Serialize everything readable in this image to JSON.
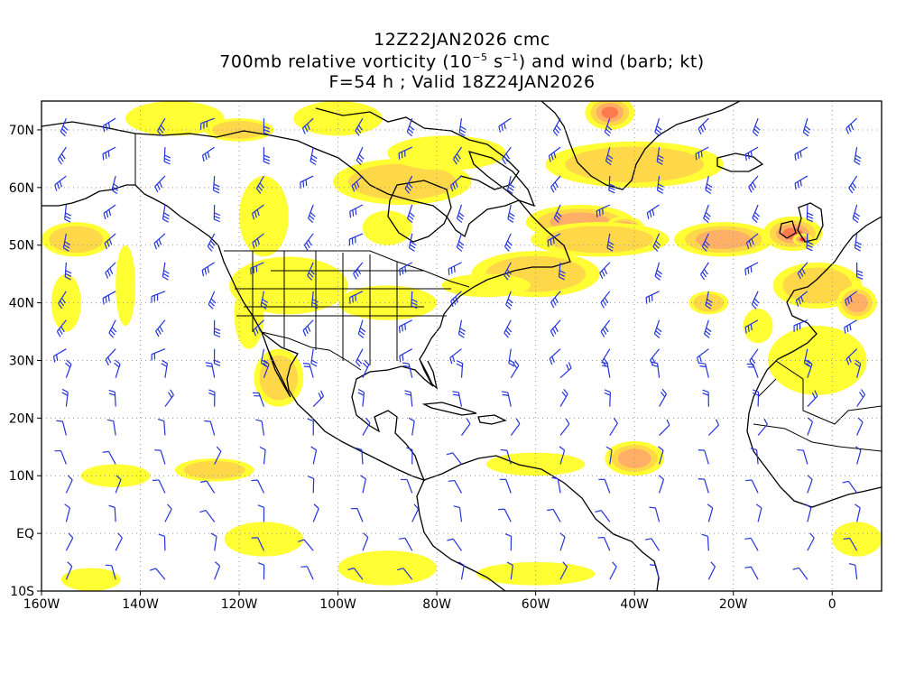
{
  "titles": {
    "line1": "12Z22JAN2026 cmc",
    "line2_pre": "700mb relative vorticity (10",
    "line2_exp1": "−5",
    "line2_mid": " s",
    "line2_exp2": "−1",
    "line2_post": ") and wind (barb; kt)",
    "line3": "F=54 h ; Valid 18Z24JAN2026"
  },
  "axes": {
    "lon_range": [
      -160,
      10
    ],
    "lat_range": [
      -10,
      75
    ],
    "y_ticks": [
      {
        "lat": 70,
        "label": "70N"
      },
      {
        "lat": 60,
        "label": "60N"
      },
      {
        "lat": 50,
        "label": "50N"
      },
      {
        "lat": 40,
        "label": "40N"
      },
      {
        "lat": 30,
        "label": "30N"
      },
      {
        "lat": 20,
        "label": "20N"
      },
      {
        "lat": 10,
        "label": "10N"
      },
      {
        "lat": 0,
        "label": "EQ"
      },
      {
        "lat": -10,
        "label": "10S"
      }
    ],
    "x_ticks": [
      {
        "lon": -160,
        "label": "160W"
      },
      {
        "lon": -140,
        "label": "140W"
      },
      {
        "lon": -120,
        "label": "120W"
      },
      {
        "lon": -100,
        "label": "100W"
      },
      {
        "lon": -80,
        "label": "80W"
      },
      {
        "lon": -60,
        "label": "60W"
      },
      {
        "lon": -40,
        "label": "40W"
      },
      {
        "lon": -20,
        "label": "20W"
      },
      {
        "lon": 0,
        "label": "0"
      }
    ],
    "gridlines": "dotted"
  },
  "colors": {
    "vort_levels": [
      "#ffff33",
      "#ffd84a",
      "#ffb066",
      "#ff7a4d",
      "#ff3333",
      "#ff3399"
    ],
    "barb": "#2233dd",
    "coast": "#000000"
  },
  "vorticity_areas": [
    {
      "lon": -51,
      "lat": 54,
      "rlon": 11,
      "rlat": 3,
      "level": 2
    },
    {
      "lon": -42,
      "lat": 53,
      "rlon": 4,
      "rlat": 2,
      "level": 5
    },
    {
      "lon": -47,
      "lat": 51,
      "rlon": 14,
      "rlat": 3,
      "level": 1
    },
    {
      "lon": -60,
      "lat": 45,
      "rlon": 13,
      "rlat": 4,
      "level": 1
    },
    {
      "lon": -70,
      "lat": 43,
      "rlon": 9,
      "rlat": 2,
      "level": 0
    },
    {
      "lon": -40,
      "lat": 64,
      "rlon": 18,
      "rlat": 4,
      "level": 1
    },
    {
      "lon": -45,
      "lat": 73,
      "rlon": 5,
      "rlat": 3,
      "level": 3
    },
    {
      "lon": -22,
      "lat": 51,
      "rlon": 10,
      "rlat": 3,
      "level": 2
    },
    {
      "lon": -8,
      "lat": 52,
      "rlon": 6,
      "rlat": 3,
      "level": 3
    },
    {
      "lon": -6,
      "lat": 51,
      "rlon": 2,
      "rlat": 1,
      "level": 4
    },
    {
      "lon": -3,
      "lat": 43,
      "rlon": 9,
      "rlat": 4,
      "level": 1
    },
    {
      "lon": 5,
      "lat": 40,
      "rlon": 4,
      "rlat": 3,
      "level": 2
    },
    {
      "lon": -3,
      "lat": 30,
      "rlon": 10,
      "rlat": 6,
      "level": 0
    },
    {
      "lon": -153,
      "lat": 51,
      "rlon": 7,
      "rlat": 3,
      "level": 1
    },
    {
      "lon": -155,
      "lat": 40,
      "rlon": 3,
      "rlat": 5,
      "level": 0
    },
    {
      "lon": -143,
      "lat": 43,
      "rlon": 2,
      "rlat": 7,
      "level": 0
    },
    {
      "lon": -133,
      "lat": 72,
      "rlon": 10,
      "rlat": 3,
      "level": 0
    },
    {
      "lon": -120,
      "lat": 70,
      "rlon": 7,
      "rlat": 2,
      "level": 1
    },
    {
      "lon": -100,
      "lat": 72,
      "rlon": 9,
      "rlat": 3,
      "level": 0
    },
    {
      "lon": -115,
      "lat": 55,
      "rlon": 5,
      "rlat": 7,
      "level": 0
    },
    {
      "lon": -87,
      "lat": 61,
      "rlon": 14,
      "rlat": 4,
      "level": 1
    },
    {
      "lon": -90,
      "lat": 53,
      "rlon": 5,
      "rlat": 3,
      "level": 0
    },
    {
      "lon": -78,
      "lat": 66,
      "rlon": 12,
      "rlat": 3,
      "level": 0
    },
    {
      "lon": -110,
      "lat": 43,
      "rlon": 12,
      "rlat": 5,
      "level": 0
    },
    {
      "lon": -112,
      "lat": 27,
      "rlon": 5,
      "rlat": 5,
      "level": 1
    },
    {
      "lon": -118,
      "lat": 38,
      "rlon": 3,
      "rlat": 6,
      "level": 0
    },
    {
      "lon": -90,
      "lat": 40,
      "rlon": 10,
      "rlat": 3,
      "level": 0
    },
    {
      "lon": -40,
      "lat": 13,
      "rlon": 6,
      "rlat": 3,
      "level": 2
    },
    {
      "lon": -60,
      "lat": 12,
      "rlon": 10,
      "rlat": 2,
      "level": 0
    },
    {
      "lon": -145,
      "lat": 10,
      "rlon": 7,
      "rlat": 2,
      "level": 0
    },
    {
      "lon": -125,
      "lat": 11,
      "rlon": 8,
      "rlat": 2,
      "level": 1
    },
    {
      "lon": -90,
      "lat": -6,
      "rlon": 10,
      "rlat": 3,
      "level": 0
    },
    {
      "lon": -115,
      "lat": -1,
      "rlon": 8,
      "rlat": 3,
      "level": 0
    },
    {
      "lon": -150,
      "lat": -8,
      "rlon": 6,
      "rlat": 2,
      "level": 0
    },
    {
      "lon": -60,
      "lat": -7,
      "rlon": 12,
      "rlat": 2,
      "level": 0
    },
    {
      "lon": -25,
      "lat": 40,
      "rlon": 4,
      "rlat": 2,
      "level": 1
    },
    {
      "lon": 5,
      "lat": -1,
      "rlon": 5,
      "rlat": 3,
      "level": 0
    },
    {
      "lon": -15,
      "lat": 36,
      "rlon": 3,
      "rlat": 3,
      "level": 0
    }
  ],
  "barb_grid": {
    "lon_step": 10,
    "lat_step": 5
  }
}
